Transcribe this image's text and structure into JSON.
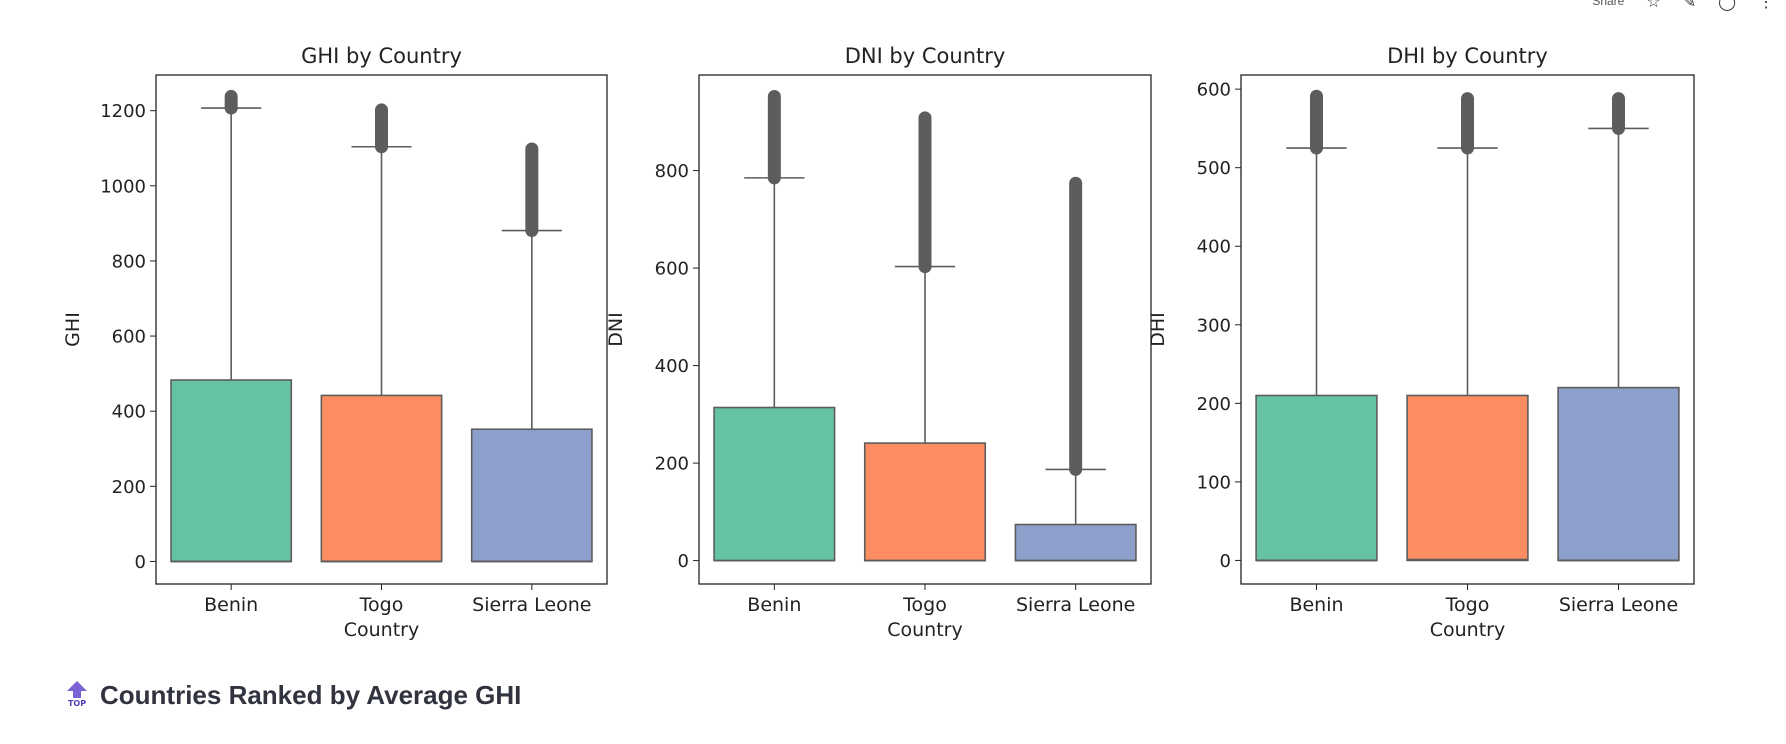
{
  "toolbar": {
    "share_label": "Share",
    "icons": [
      "star-icon",
      "edit-icon",
      "github-icon",
      "more-icon"
    ]
  },
  "section": {
    "title": "Countries Ranked by Average GHI",
    "top_icon_text": "TOP",
    "top_icon": "arrow-up-icon"
  },
  "chart_data": [
    {
      "type": "box",
      "title": "GHI by Country",
      "xlabel": "Country",
      "ylabel": "GHI",
      "categories": [
        "Benin",
        "Togo",
        "Sierra Leone"
      ],
      "colors": [
        "#66c2a5",
        "#fc8d62",
        "#8da0cb"
      ],
      "ylim": [
        -60,
        1295
      ],
      "yticks": [
        0,
        200,
        400,
        600,
        800,
        1000,
        1200
      ],
      "boxes": [
        {
          "name": "Benin",
          "q1": 0,
          "median": 0,
          "q3": 483,
          "whisker_low": 0,
          "whisker_high": 1207,
          "outliers_from": 1207,
          "outliers_to": 1238
        },
        {
          "name": "Togo",
          "q1": 0,
          "median": 0,
          "q3": 442,
          "whisker_low": 0,
          "whisker_high": 1104,
          "outliers_from": 1104,
          "outliers_to": 1202
        },
        {
          "name": "Sierra Leone",
          "q1": 0,
          "median": 0,
          "q3": 352,
          "whisker_low": 0,
          "whisker_high": 881,
          "outliers_from": 881,
          "outliers_to": 1098
        }
      ],
      "grid": false
    },
    {
      "type": "box",
      "title": "DNI by Country",
      "xlabel": "Country",
      "ylabel": "DNI",
      "categories": [
        "Benin",
        "Togo",
        "Sierra Leone"
      ],
      "colors": [
        "#66c2a5",
        "#fc8d62",
        "#8da0cb"
      ],
      "ylim": [
        -48,
        996
      ],
      "yticks": [
        0,
        200,
        400,
        600,
        800
      ],
      "boxes": [
        {
          "name": "Benin",
          "q1": 0,
          "median": 0,
          "q3": 314,
          "whisker_low": 0,
          "whisker_high": 785,
          "outliers_from": 785,
          "outliers_to": 952
        },
        {
          "name": "Togo",
          "q1": 0,
          "median": 0,
          "q3": 241,
          "whisker_low": 0,
          "whisker_high": 603,
          "outliers_from": 603,
          "outliers_to": 908
        },
        {
          "name": "Sierra Leone",
          "q1": 0,
          "median": 0,
          "q3": 74,
          "whisker_low": 0,
          "whisker_high": 187,
          "outliers_from": 187,
          "outliers_to": 774
        }
      ],
      "grid": false
    },
    {
      "type": "box",
      "title": "DHI by Country",
      "xlabel": "Country",
      "ylabel": "DHI",
      "categories": [
        "Benin",
        "Togo",
        "Sierra Leone"
      ],
      "colors": [
        "#66c2a5",
        "#fc8d62",
        "#8da0cb"
      ],
      "ylim": [
        -30,
        618
      ],
      "yticks": [
        0,
        100,
        200,
        300,
        400,
        500,
        600
      ],
      "boxes": [
        {
          "name": "Benin",
          "q1": 0,
          "median": 0,
          "q3": 210,
          "whisker_low": 0,
          "whisker_high": 525,
          "outliers_from": 525,
          "outliers_to": 591
        },
        {
          "name": "Togo",
          "q1": 0,
          "median": 1,
          "q3": 210,
          "whisker_low": 0,
          "whisker_high": 525,
          "outliers_from": 525,
          "outliers_to": 588
        },
        {
          "name": "Sierra Leone",
          "q1": 0,
          "median": 0,
          "q3": 220,
          "whisker_low": 0,
          "whisker_high": 550,
          "outliers_from": 550,
          "outliers_to": 588
        }
      ],
      "grid": false
    }
  ]
}
